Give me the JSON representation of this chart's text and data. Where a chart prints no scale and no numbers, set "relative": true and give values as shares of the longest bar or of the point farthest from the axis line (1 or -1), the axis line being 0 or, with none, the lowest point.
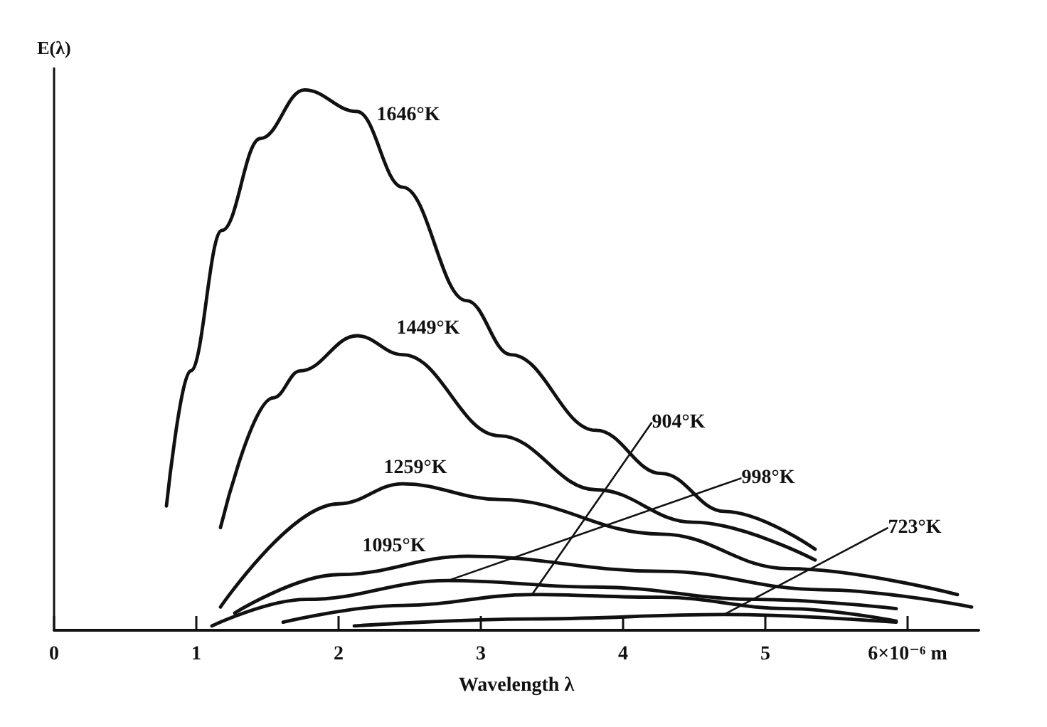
{
  "chart_data": {
    "type": "line",
    "xlabel": "Wavelength λ",
    "ylabel": "E(λ)",
    "relative": true,
    "xlim": [
      0,
      6.5
    ],
    "xticks": [
      0,
      1,
      2,
      3,
      4,
      5,
      {
        "value": 6,
        "label": "6×10⁻⁶ m"
      }
    ],
    "grid": false,
    "legend": false,
    "marker": "none",
    "line_style": "solid",
    "series": [
      {
        "name": "1646°K",
        "color": "#111111",
        "x": [
          0.79,
          0.96,
          1.18,
          1.45,
          1.76,
          2.13,
          2.45,
          2.9,
          3.21,
          3.81,
          4.27,
          4.71,
          5.35
        ],
        "values": [
          0.23,
          0.48,
          0.74,
          0.91,
          1.0,
          0.96,
          0.82,
          0.61,
          0.51,
          0.37,
          0.29,
          0.22,
          0.15
        ]
      },
      {
        "name": "1449°K",
        "color": "#111111",
        "x": [
          1.17,
          1.54,
          1.73,
          2.13,
          2.45,
          3.13,
          3.81,
          4.49,
          5.35
        ],
        "values": [
          0.19,
          0.43,
          0.48,
          0.545,
          0.51,
          0.36,
          0.26,
          0.2,
          0.13
        ]
      },
      {
        "name": "1259°K",
        "color": "#111111",
        "x": [
          1.17,
          2.0,
          2.45,
          3.13,
          4.27,
          5.16,
          6.35
        ],
        "values": [
          0.043,
          0.234,
          0.271,
          0.242,
          0.178,
          0.114,
          0.066
        ]
      },
      {
        "name": "1095°K",
        "color": "#111111",
        "x": [
          1.27,
          2.0,
          2.91,
          4.27,
          5.4,
          6.45
        ],
        "values": [
          0.032,
          0.103,
          0.137,
          0.109,
          0.075,
          0.043
        ]
      },
      {
        "name": "998°K",
        "color": "#111111",
        "x": [
          1.11,
          1.77,
          2.77,
          3.81,
          4.94,
          5.92
        ],
        "values": [
          0.008,
          0.057,
          0.092,
          0.08,
          0.057,
          0.04
        ]
      },
      {
        "name": "904°K",
        "color": "#111111",
        "x": [
          1.61,
          2.45,
          3.36,
          4.27,
          5.16,
          5.92
        ],
        "values": [
          0.015,
          0.046,
          0.066,
          0.061,
          0.04,
          0.017
        ]
      },
      {
        "name": "723°K",
        "color": "#111111",
        "x": [
          2.11,
          3.36,
          4.71,
          5.92
        ],
        "values": [
          0.008,
          0.021,
          0.029,
          0.015
        ]
      }
    ]
  }
}
